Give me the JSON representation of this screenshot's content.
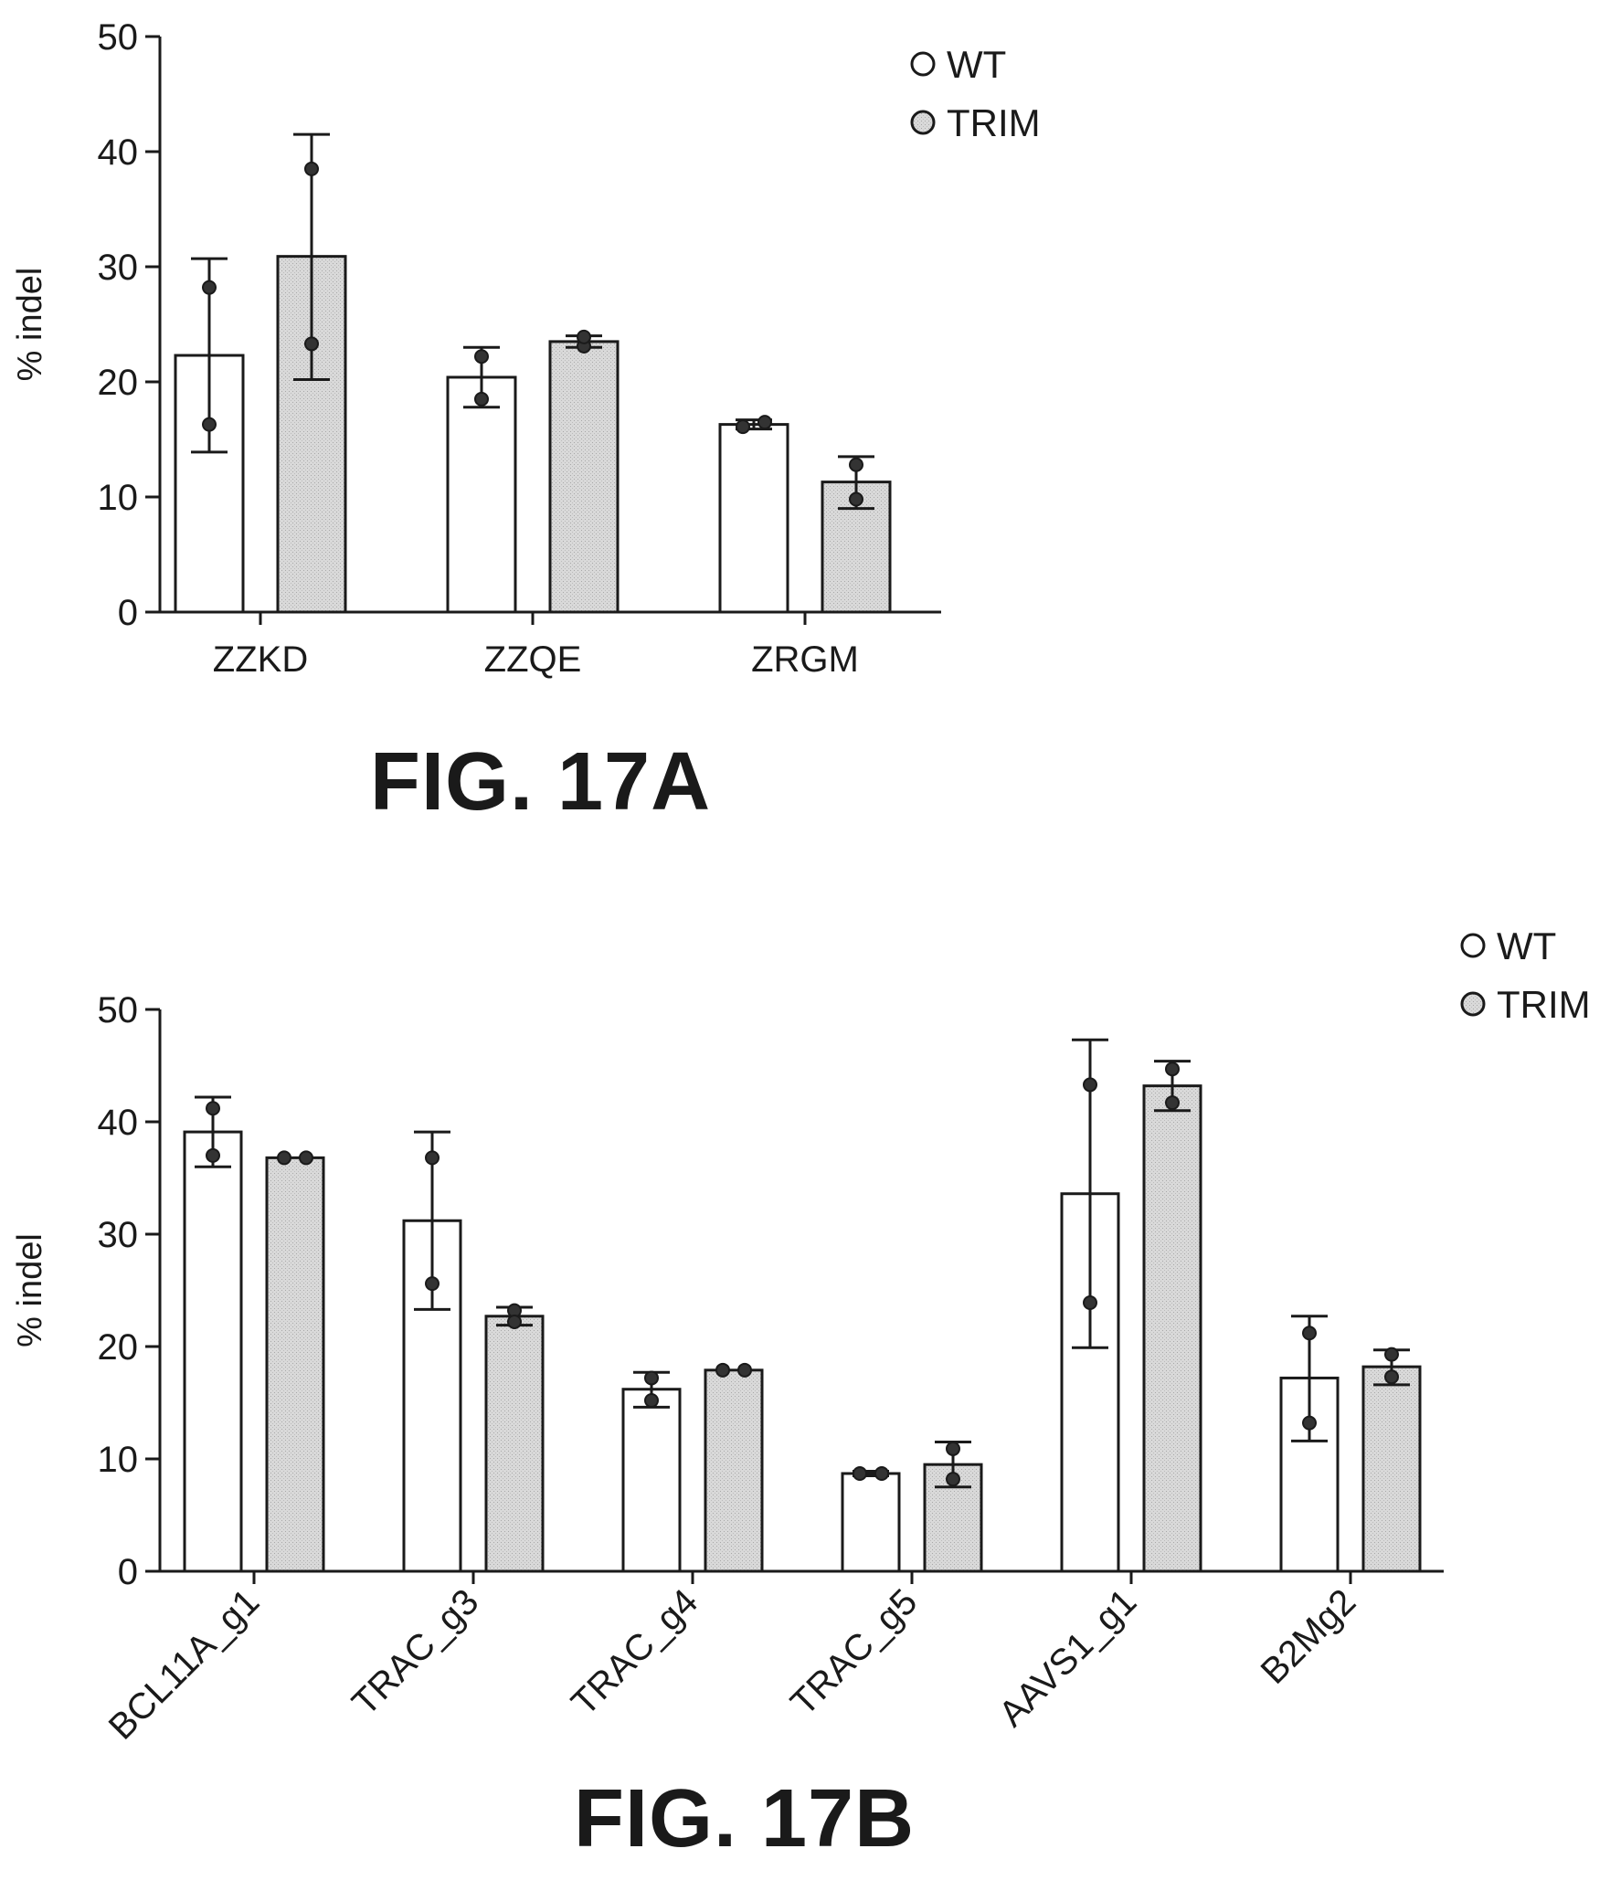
{
  "figures": {
    "fig_a_caption": "FIG. 17A",
    "fig_b_caption": "FIG. 17B"
  },
  "colors": {
    "wt_fill": "#ffffff",
    "trim_fill": "#d9d9d9",
    "stroke": "#1a1a1a"
  },
  "chart_data": [
    {
      "id": "fig17a",
      "type": "bar",
      "title": "",
      "xlabel": "",
      "ylabel": "% indel",
      "ylim": [
        0,
        50
      ],
      "yticks": [
        0,
        10,
        20,
        30,
        40,
        50
      ],
      "categories": [
        "ZZKD",
        "ZZQE",
        "ZRGM"
      ],
      "legend": {
        "position": "top-right",
        "entries": [
          "WT",
          "TRIM"
        ]
      },
      "series": [
        {
          "name": "WT",
          "color": "#ffffff",
          "values": [
            22.3,
            20.4,
            16.3
          ],
          "error_low": [
            13.9,
            17.8,
            15.9
          ],
          "error_high": [
            30.7,
            23.0,
            16.7
          ],
          "points": [
            [
              28.2,
              16.3
            ],
            [
              22.2,
              18.5
            ],
            [
              16.1,
              16.5
            ]
          ]
        },
        {
          "name": "TRIM",
          "color": "#d9d9d9",
          "values": [
            30.9,
            23.5,
            11.3
          ],
          "error_low": [
            20.2,
            23.0,
            9.0
          ],
          "error_high": [
            41.5,
            24.0,
            13.5
          ],
          "points": [
            [
              38.5,
              23.3
            ],
            [
              23.1,
              23.9
            ],
            [
              12.8,
              9.8
            ]
          ]
        }
      ]
    },
    {
      "id": "fig17b",
      "type": "bar",
      "title": "",
      "xlabel": "",
      "ylabel": "% indel",
      "ylim": [
        0,
        50
      ],
      "yticks": [
        0,
        10,
        20,
        30,
        40,
        50
      ],
      "categories": [
        "BCL11A_g1",
        "TRAC_g3",
        "TRAC_g4",
        "TRAC_g5",
        "AAVS1_g1",
        "B2Mg2"
      ],
      "legend": {
        "position": "top-right",
        "entries": [
          "WT",
          "TRIM"
        ]
      },
      "series": [
        {
          "name": "WT",
          "color": "#ffffff",
          "values": [
            39.1,
            31.2,
            16.2,
            8.7,
            33.6,
            17.2
          ],
          "error_low": [
            36.0,
            23.3,
            14.6,
            8.5,
            19.9,
            11.6
          ],
          "error_high": [
            42.2,
            39.1,
            17.7,
            8.9,
            47.3,
            22.7
          ],
          "points": [
            [
              41.2,
              37.0
            ],
            [
              36.8,
              25.6
            ],
            [
              17.2,
              15.2
            ],
            [
              8.7,
              8.7
            ],
            [
              43.3,
              23.9
            ],
            [
              21.2,
              13.2
            ]
          ]
        },
        {
          "name": "TRIM",
          "color": "#d9d9d9",
          "values": [
            36.8,
            22.7,
            17.9,
            9.5,
            43.2,
            18.2
          ],
          "error_low": [
            36.8,
            21.9,
            17.9,
            7.5,
            41.0,
            16.6
          ],
          "error_high": [
            36.8,
            23.5,
            17.9,
            11.5,
            45.4,
            19.7
          ],
          "points": [
            [
              36.8,
              36.8
            ],
            [
              23.2,
              22.2
            ],
            [
              17.9,
              17.9
            ],
            [
              10.9,
              8.2
            ],
            [
              44.7,
              41.7
            ],
            [
              19.3,
              17.3
            ]
          ]
        }
      ]
    }
  ]
}
